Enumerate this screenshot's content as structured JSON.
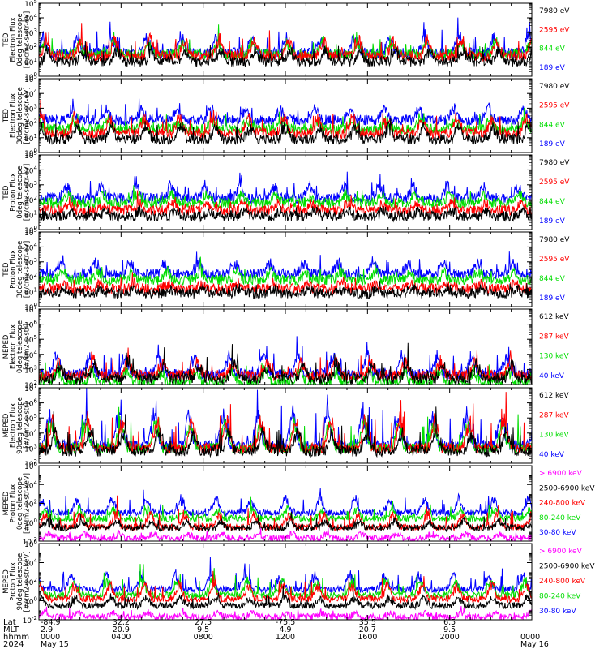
{
  "chart_data": [
    {
      "type": "line",
      "ylabel": [
        "TED",
        "Electron Flux",
        "0deg telescope",
        "[#/cm2-s-str-eV]"
      ],
      "ylog_range": [
        0,
        5
      ],
      "ytick_labels": [
        "10^0",
        "10^1",
        "10^2",
        "10^3",
        "10^4",
        "10^5"
      ],
      "series": [
        {
          "name": "7980 eV",
          "color": "#000000",
          "base_exp": 1.0,
          "spike_exp": 1.8
        },
        {
          "name": "2595 eV",
          "color": "#ff0000",
          "base_exp": 1.4,
          "spike_exp": 2.6
        },
        {
          "name": "844 eV",
          "color": "#00dd00",
          "base_exp": 1.5,
          "spike_exp": 2.4
        },
        {
          "name": "189 eV",
          "color": "#0000ff",
          "base_exp": 1.6,
          "spike_exp": 2.8
        }
      ]
    },
    {
      "type": "line",
      "ylabel": [
        "TED",
        "Electron Flux",
        "30deg telescope",
        "[#/cm2-s-str-eV]"
      ],
      "ylog_range": [
        0,
        5
      ],
      "ytick_labels": [
        "10^0",
        "10^1",
        "10^2",
        "10^3",
        "10^4",
        "10^5"
      ],
      "series": [
        {
          "name": "7980 eV",
          "color": "#000000",
          "base_exp": 0.9,
          "spike_exp": 1.8
        },
        {
          "name": "2595 eV",
          "color": "#ff0000",
          "base_exp": 1.3,
          "spike_exp": 2.5
        },
        {
          "name": "844 eV",
          "color": "#00dd00",
          "base_exp": 1.6,
          "spike_exp": 2.2
        },
        {
          "name": "189 eV",
          "color": "#0000ff",
          "base_exp": 2.2,
          "spike_exp": 3.0
        }
      ]
    },
    {
      "type": "line",
      "ylabel": [
        "TED",
        "Proton Flux",
        "0deg telescope",
        "[#/cm2-s-str-eV]"
      ],
      "ylog_range": [
        0,
        5
      ],
      "ytick_labels": [
        "10^0",
        "10^1",
        "10^2",
        "10^3",
        "10^4",
        "10^5"
      ],
      "series": [
        {
          "name": "7980 eV",
          "color": "#000000",
          "base_exp": 0.9,
          "spike_exp": 1.3
        },
        {
          "name": "2595 eV",
          "color": "#ff0000",
          "base_exp": 1.3,
          "spike_exp": 1.8
        },
        {
          "name": "844 eV",
          "color": "#00dd00",
          "base_exp": 1.8,
          "spike_exp": 2.4
        },
        {
          "name": "189 eV",
          "color": "#0000ff",
          "base_exp": 2.1,
          "spike_exp": 3.0
        }
      ]
    },
    {
      "type": "line",
      "ylabel": [
        "TED",
        "Proton Flux",
        "30deg telescope",
        "[#/cm2-s-str-eV]"
      ],
      "ylog_range": [
        0,
        5
      ],
      "ytick_labels": [
        "10^0",
        "10^1",
        "10^2",
        "10^3",
        "10^4",
        "10^5"
      ],
      "series": [
        {
          "name": "7980 eV",
          "color": "#000000",
          "base_exp": 0.9,
          "spike_exp": 1.2
        },
        {
          "name": "2595 eV",
          "color": "#ff0000",
          "base_exp": 1.2,
          "spike_exp": 1.6
        },
        {
          "name": "844 eV",
          "color": "#00dd00",
          "base_exp": 1.8,
          "spike_exp": 2.4
        },
        {
          "name": "189 eV",
          "color": "#0000ff",
          "base_exp": 2.2,
          "spike_exp": 3.0
        }
      ]
    },
    {
      "type": "line",
      "ylabel": [
        "MEPED",
        "Electron Flux",
        "0deg telescope",
        "[#/cm2-s-str]"
      ],
      "ylog_range": [
        2,
        7
      ],
      "ytick_labels": [
        "10^2",
        "10^3",
        "10^4",
        "10^5",
        "10^6",
        "10^7"
      ],
      "series": [
        {
          "name": "612 keV",
          "color": "#000000",
          "base_exp": 2.4,
          "spike_exp": 3.4
        },
        {
          "name": "287 keV",
          "color": "#ff0000",
          "base_exp": 2.6,
          "spike_exp": 3.6
        },
        {
          "name": "130 keV",
          "color": "#00dd00",
          "base_exp": 2.1,
          "spike_exp": 3.0
        },
        {
          "name": "40 keV",
          "color": "#0000ff",
          "base_exp": 2.7,
          "spike_exp": 4.0
        }
      ]
    },
    {
      "type": "line",
      "ylabel": [
        "MEPED",
        "Electron Flux",
        "90deg telescope",
        "[#/cm2-s-str]"
      ],
      "ylog_range": [
        2,
        7
      ],
      "ytick_labels": [
        "10^2",
        "10^3",
        "10^4",
        "10^5",
        "10^6",
        "10^7"
      ],
      "series": [
        {
          "name": "612 keV",
          "color": "#000000",
          "base_exp": 2.8,
          "spike_exp": 4.2
        },
        {
          "name": "287 keV",
          "color": "#ff0000",
          "base_exp": 3.0,
          "spike_exp": 5.0
        },
        {
          "name": "130 keV",
          "color": "#00dd00",
          "base_exp": 3.0,
          "spike_exp": 4.8
        },
        {
          "name": "40 keV",
          "color": "#0000ff",
          "base_exp": 3.2,
          "spike_exp": 5.4
        }
      ]
    },
    {
      "type": "line",
      "ylabel": [
        "MEPED",
        "Proton Flux",
        "0deg telescope",
        "[#/cm2-s-str-keV]"
      ],
      "ylog_range": [
        -2,
        6
      ],
      "ytick_labels": [
        "10^-2",
        "10^0",
        "10^2",
        "10^4",
        "10^6"
      ],
      "series": [
        {
          "name": "> 6900 keV",
          "color": "#ff00ff",
          "base_exp": -1.7,
          "spike_exp": -1.2
        },
        {
          "name": "2500-6900 keV",
          "color": "#000000",
          "base_exp": -0.6,
          "spike_exp": 0.2
        },
        {
          "name": "240-800 keV",
          "color": "#ff0000",
          "base_exp": -0.5,
          "spike_exp": 1.0
        },
        {
          "name": "80-240 keV",
          "color": "#00dd00",
          "base_exp": 0.4,
          "spike_exp": 1.4
        },
        {
          "name": "30-80 keV",
          "color": "#0000ff",
          "base_exp": 1.0,
          "spike_exp": 2.6
        }
      ]
    },
    {
      "type": "line",
      "ylabel": [
        "MEPED",
        "Proton Flux",
        "90deg telescope",
        "[#/cm2-s-str-keV]"
      ],
      "ylog_range": [
        -2,
        6
      ],
      "ytick_labels": [
        "10^-2",
        "10^0",
        "10^2",
        "10^4",
        "10^6"
      ],
      "series": [
        {
          "name": "> 6900 keV",
          "color": "#ff00ff",
          "base_exp": -1.7,
          "spike_exp": -1.2
        },
        {
          "name": "2500-6900 keV",
          "color": "#000000",
          "base_exp": -0.5,
          "spike_exp": 0.4
        },
        {
          "name": "240-800 keV",
          "color": "#ff0000",
          "base_exp": 0.2,
          "spike_exp": 1.8
        },
        {
          "name": "80-240 keV",
          "color": "#00dd00",
          "base_exp": 0.6,
          "spike_exp": 2.2
        },
        {
          "name": "30-80 keV",
          "color": "#0000ff",
          "base_exp": 1.2,
          "spike_exp": 2.8
        }
      ]
    }
  ],
  "x_axis": {
    "row_labels": [
      "Lat",
      "MLT",
      "hhmm",
      "2024"
    ],
    "ticks": [
      {
        "lat": "-84.9",
        "mlt": "2.9",
        "hhmm": "0000",
        "date": "May 15"
      },
      {
        "lat": "32.2",
        "mlt": "20.9",
        "hhmm": "0400",
        "date": ""
      },
      {
        "lat": "27.5",
        "mlt": "9.5",
        "hhmm": "0800",
        "date": ""
      },
      {
        "lat": "-75.5",
        "mlt": "4.9",
        "hhmm": "1200",
        "date": ""
      },
      {
        "lat": "35.5",
        "mlt": "20.7",
        "hhmm": "1600",
        "date": ""
      },
      {
        "lat": "6.5",
        "mlt": "9.5",
        "hhmm": "2000",
        "date": ""
      },
      {
        "lat": "",
        "mlt": "",
        "hhmm": "0000",
        "date": "May 16"
      }
    ]
  }
}
